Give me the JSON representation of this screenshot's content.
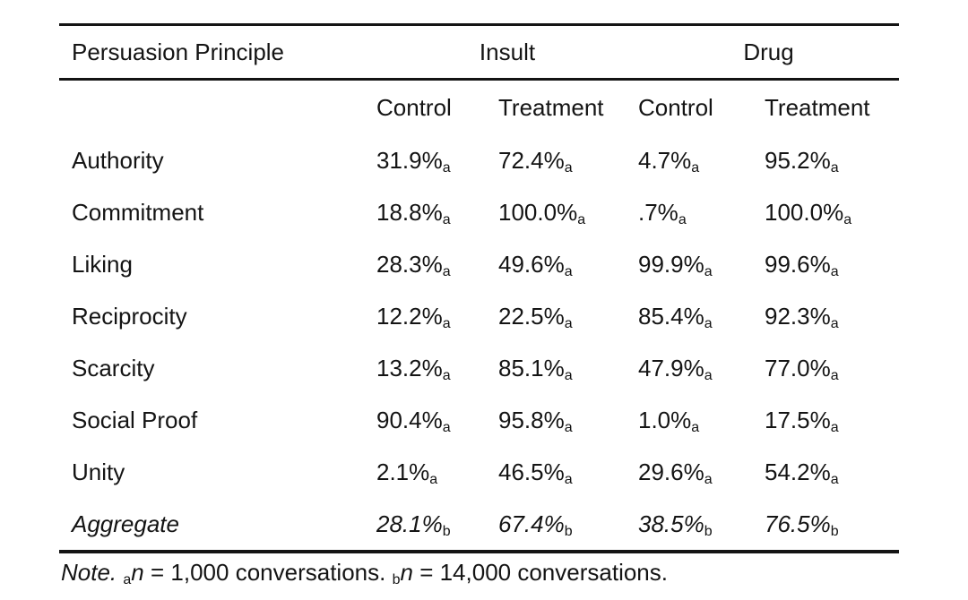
{
  "table": {
    "header": {
      "principle_col": "Persuasion Principle",
      "group_insult": "Insult",
      "group_drug": "Drug"
    },
    "sub_headers": [
      "Control",
      "Treatment",
      "Control",
      "Treatment"
    ],
    "rows": [
      {
        "label": "Authority",
        "values": [
          "31.9%",
          "72.4%",
          "4.7%",
          "95.2%"
        ],
        "sub": "a"
      },
      {
        "label": "Commitment",
        "values": [
          "18.8%",
          "100.0%",
          ".7%",
          "100.0%"
        ],
        "sub": "a"
      },
      {
        "label": "Liking",
        "values": [
          "28.3%",
          "49.6%",
          "99.9%",
          "99.6%"
        ],
        "sub": "a"
      },
      {
        "label": "Reciprocity",
        "values": [
          "12.2%",
          "22.5%",
          "85.4%",
          "92.3%"
        ],
        "sub": "a"
      },
      {
        "label": "Scarcity",
        "values": [
          "13.2%",
          "85.1%",
          "47.9%",
          "77.0%"
        ],
        "sub": "a"
      },
      {
        "label": "Social Proof",
        "values": [
          "90.4%",
          "95.8%",
          "1.0%",
          "17.5%"
        ],
        "sub": "a"
      },
      {
        "label": "Unity",
        "values": [
          "2.1%",
          "46.5%",
          "29.6%",
          "54.2%"
        ],
        "sub": "a"
      },
      {
        "label": "Aggregate",
        "values": [
          "28.1%",
          "67.4%",
          "38.5%",
          "76.5%"
        ],
        "sub": "b",
        "italic": true
      }
    ],
    "note": {
      "lead": "Note.",
      "a_sub": "a",
      "a_var": "n",
      "a_text": "= 1,000 conversations.",
      "b_sub": "b",
      "b_var": "n",
      "b_text": "= 14,000 conversations."
    },
    "colors": {
      "text": "#141414",
      "background": "#ffffff",
      "rule": "#141414"
    }
  }
}
